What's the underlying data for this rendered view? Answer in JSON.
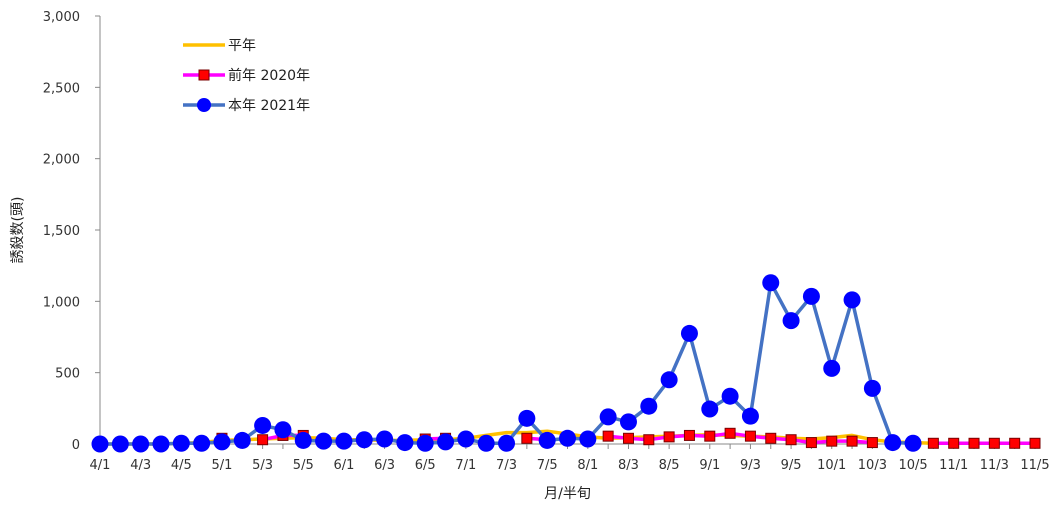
{
  "chart_data": {
    "type": "line",
    "xlabel": "月/半旬",
    "ylabel": "誘殺数(頭)",
    "ylim": [
      0,
      3000
    ],
    "yticks": [
      "3,000",
      "2,500",
      "2,000",
      "1,500",
      "1,000",
      "500",
      "0"
    ],
    "ytick_values": [
      3000,
      2500,
      2000,
      1500,
      1000,
      500,
      0
    ],
    "x": [
      "4/1",
      "4/2",
      "4/3",
      "4/4",
      "4/5",
      "4/6",
      "5/1",
      "5/2",
      "5/3",
      "5/4",
      "5/5",
      "5/6",
      "6/1",
      "6/2",
      "6/3",
      "6/4",
      "6/5",
      "6/6",
      "7/1",
      "7/2",
      "7/3",
      "7/4",
      "7/5",
      "7/6",
      "8/1",
      "8/2",
      "8/3",
      "8/4",
      "8/5",
      "8/6",
      "9/1",
      "9/2",
      "9/3",
      "9/4",
      "9/5",
      "9/6",
      "10/1",
      "10/2",
      "10/3",
      "10/4",
      "10/5",
      "10/6",
      "11/1",
      "11/2",
      "11/3",
      "11/4",
      "11/5"
    ],
    "xtick_labels": [
      "4/1",
      "4/3",
      "4/5",
      "5/1",
      "5/3",
      "5/5",
      "6/1",
      "6/3",
      "6/5",
      "7/1",
      "7/3",
      "7/5",
      "8/1",
      "8/3",
      "8/5",
      "9/1",
      "9/3",
      "9/5",
      "10/1",
      "10/3",
      "10/5",
      "11/1",
      "11/3",
      "11/5"
    ],
    "legend_position": "top-left",
    "grid": false,
    "series": [
      {
        "name": "平年",
        "color": "#FFC000",
        "marker": "none",
        "values": [
          0,
          0,
          0,
          0,
          5,
          10,
          25,
          30,
          35,
          40,
          45,
          40,
          30,
          30,
          25,
          25,
          30,
          30,
          40,
          60,
          80,
          80,
          90,
          70,
          50,
          40,
          45,
          50,
          55,
          60,
          65,
          60,
          55,
          50,
          40,
          35,
          45,
          60,
          30,
          15,
          10,
          5,
          5,
          5,
          5,
          5,
          5
        ]
      },
      {
        "name": "前年 2020年",
        "color": "#FF00FF",
        "marker": "square",
        "marker_color": "#FF0000",
        "values": [
          null,
          null,
          null,
          null,
          null,
          null,
          40,
          null,
          30,
          60,
          60,
          null,
          null,
          null,
          null,
          null,
          35,
          40,
          null,
          null,
          null,
          40,
          30,
          null,
          null,
          55,
          40,
          30,
          50,
          60,
          55,
          75,
          55,
          40,
          30,
          10,
          20,
          20,
          10,
          null,
          null,
          5,
          5,
          5,
          5,
          5,
          5
        ]
      },
      {
        "name": "本年 2021年",
        "color": "#4472C4",
        "marker": "circle",
        "marker_color": "#0000FF",
        "values": [
          0,
          0,
          0,
          0,
          5,
          5,
          15,
          25,
          130,
          100,
          25,
          20,
          20,
          30,
          35,
          10,
          5,
          15,
          35,
          5,
          5,
          180,
          25,
          40,
          35,
          190,
          155,
          265,
          450,
          775,
          245,
          335,
          195,
          1130,
          865,
          1035,
          530,
          1010,
          390,
          10,
          5,
          null,
          null,
          null,
          null,
          null,
          null
        ]
      }
    ]
  }
}
